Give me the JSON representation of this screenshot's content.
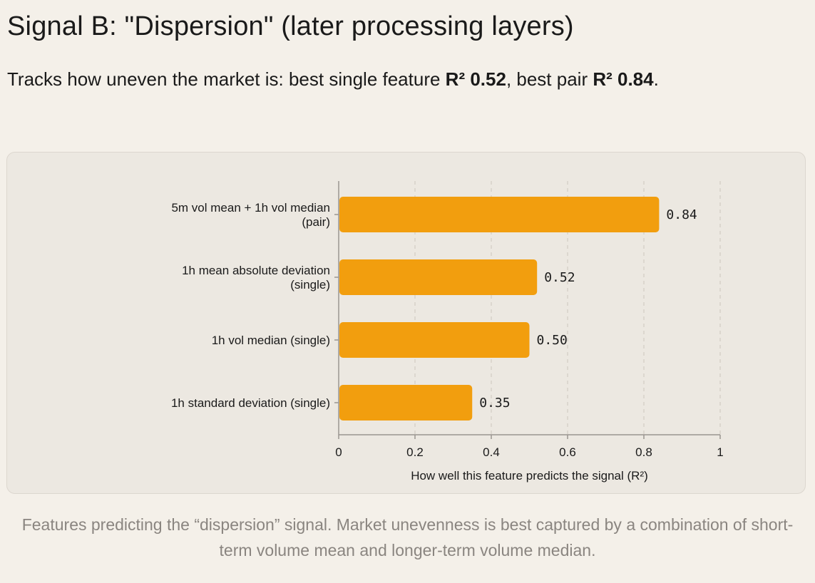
{
  "header": {
    "title": "Signal B: \"Dispersion\" (later processing layers)",
    "subtitle_prefix": "Tracks how uneven the market is: best single feature ",
    "subtitle_bold_1": "R² 0.52",
    "subtitle_mid": ", best pair ",
    "subtitle_bold_2": "R² 0.84",
    "subtitle_suffix": "."
  },
  "chart_data": {
    "type": "bar",
    "orientation": "horizontal",
    "categories": [
      [
        "5m vol mean + 1h vol median",
        "(pair)"
      ],
      [
        "1h mean absolute deviation",
        "(single)"
      ],
      [
        "1h vol median (single)"
      ],
      [
        "1h standard deviation (single)"
      ]
    ],
    "values": [
      0.84,
      0.52,
      0.5,
      0.35
    ],
    "value_labels": [
      "0.84",
      "0.52",
      "0.50",
      "0.35"
    ],
    "xlabel": "How well this feature predicts the signal (R²)",
    "ylabel": "",
    "xlim": [
      0,
      1
    ],
    "xticks": [
      0,
      0.2,
      0.4,
      0.6,
      0.8,
      1
    ],
    "xtick_labels": [
      "0",
      "0.2",
      "0.4",
      "0.6",
      "0.8",
      "1"
    ],
    "grid": "vertical dashed",
    "colors": {
      "bar": "#f29e0e",
      "grid": "#d6d1c9",
      "axis": "#9a9590"
    }
  },
  "caption": "Features predicting the “dispersion” signal. Market unevenness is best captured by a combination of short-term volume mean and longer-term volume median."
}
